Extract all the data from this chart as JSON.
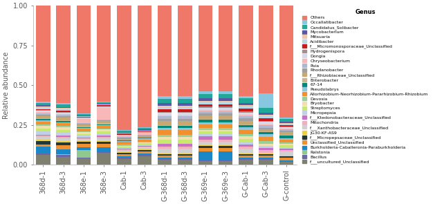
{
  "categories": [
    "368d-1",
    "368d-3",
    "368e-1",
    "368e-3",
    "Cab-1",
    "Cab-3",
    "G-368d-1",
    "G-368d-3",
    "G-369e-1",
    "G-369e-3",
    "G-Cab-1",
    "G-Cab-3",
    "G-control"
  ],
  "genera": [
    "Others",
    "Occallatibacter",
    "Candidatus_Solibacter",
    "Mycobacterium",
    "Mitsuaria",
    "Acidibacter",
    "f___Micromonosporaceae_Unclassified",
    "Hydrogenispora",
    "Dongia",
    "Chryseobacterium",
    "Puia",
    "Rhodanobacter",
    "f___Rhizobiaceae_Unclassified",
    "Enterobacter",
    "67-14",
    "Pseudolabrys",
    "Allorhizobium-Neorhizobium-Pararhizobium-Rhizobium",
    "Devosia",
    "Bryobacter",
    "Streptomyces",
    "Micropepsia",
    "f___Ktedonobacteraceae_Unclassified",
    "Mitochondria",
    "f___Xanthobacteraceae_Unclassified",
    "JG30-KF-AS9",
    "f___Micropepsaceae_Unclassified",
    "Unclassified_Unclassified",
    "Burkholderia-Caballeronia-Paraburkholderia",
    "Ralstonia",
    "Bacillus",
    "f___uncultured_Unclassified"
  ],
  "colors": [
    "#F07868",
    "#87C8E0",
    "#20A898",
    "#5858A8",
    "#F0C8A8",
    "#B8D8E8",
    "#CC1818",
    "#A09090",
    "#D8D8E8",
    "#F8B8B8",
    "#B0B8D0",
    "#A0A0A0",
    "#C8A870",
    "#C8B890",
    "#008878",
    "#88C8E0",
    "#F09030",
    "#98D098",
    "#F0E0B0",
    "#C8E870",
    "#C0D0E8",
    "#C870C8",
    "#F0B0C0",
    "#D0D0D0",
    "#F0D040",
    "#203838",
    "#F09030",
    "#1888C8",
    "#90C890",
    "#6868A8",
    "#808070"
  ],
  "ylabel": "Relative abundance",
  "legend_title": "Genus",
  "ylim": [
    0,
    1.0
  ],
  "yticks": [
    0.0,
    0.25,
    0.5,
    0.75,
    1.0
  ],
  "background_color": "#ffffff"
}
